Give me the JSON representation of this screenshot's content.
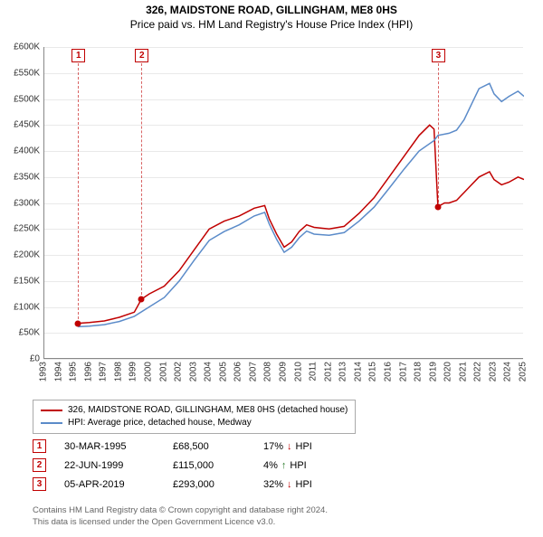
{
  "title": "326, MAIDSTONE ROAD, GILLINGHAM, ME8 0HS",
  "subtitle": "Price paid vs. HM Land Registry's House Price Index (HPI)",
  "chart": {
    "type": "line",
    "background_color": "#ffffff",
    "grid_color": "#e9e9e9",
    "axis_color": "#888888",
    "ylim": [
      0,
      600000
    ],
    "ytick_step": 50000,
    "ytick_labels": [
      "£0",
      "£50K",
      "£100K",
      "£150K",
      "£200K",
      "£250K",
      "£300K",
      "£350K",
      "£400K",
      "£450K",
      "£500K",
      "£550K",
      "£600K"
    ],
    "xlim": [
      1993,
      2025
    ],
    "xtick_step": 1,
    "xtick_labels": [
      "1993",
      "1994",
      "1995",
      "1996",
      "1997",
      "1998",
      "1999",
      "2000",
      "2001",
      "2002",
      "2003",
      "2004",
      "2005",
      "2006",
      "2007",
      "2008",
      "2009",
      "2010",
      "2011",
      "2012",
      "2013",
      "2014",
      "2015",
      "2016",
      "2017",
      "2018",
      "2019",
      "2020",
      "2021",
      "2022",
      "2023",
      "2024",
      "2025"
    ],
    "title_fontsize": 12,
    "label_fontsize": 10,
    "line_width": 1.5,
    "series": [
      {
        "name": "326, MAIDSTONE ROAD, GILLINGHAM, ME8 0HS (detached house)",
        "color": "#c00000",
        "points": [
          [
            1995.25,
            68500
          ],
          [
            1996,
            70000
          ],
          [
            1997,
            73000
          ],
          [
            1998,
            80000
          ],
          [
            1999,
            90000
          ],
          [
            1999.48,
            115000
          ],
          [
            2000,
            125000
          ],
          [
            2001,
            140000
          ],
          [
            2002,
            170000
          ],
          [
            2003,
            210000
          ],
          [
            2004,
            250000
          ],
          [
            2005,
            265000
          ],
          [
            2006,
            275000
          ],
          [
            2007,
            290000
          ],
          [
            2007.7,
            295000
          ],
          [
            2008,
            270000
          ],
          [
            2008.5,
            240000
          ],
          [
            2009,
            215000
          ],
          [
            2009.5,
            225000
          ],
          [
            2010,
            245000
          ],
          [
            2010.5,
            258000
          ],
          [
            2011,
            253000
          ],
          [
            2012,
            250000
          ],
          [
            2013,
            255000
          ],
          [
            2014,
            280000
          ],
          [
            2015,
            310000
          ],
          [
            2016,
            350000
          ],
          [
            2017,
            390000
          ],
          [
            2018,
            430000
          ],
          [
            2018.7,
            450000
          ],
          [
            2019,
            442000
          ],
          [
            2019.26,
            293000
          ],
          [
            2019.7,
            300000
          ],
          [
            2020,
            300000
          ],
          [
            2020.5,
            305000
          ],
          [
            2021,
            320000
          ],
          [
            2021.5,
            335000
          ],
          [
            2022,
            350000
          ],
          [
            2022.7,
            360000
          ],
          [
            2023,
            345000
          ],
          [
            2023.5,
            335000
          ],
          [
            2024,
            340000
          ],
          [
            2024.6,
            350000
          ],
          [
            2025,
            345000
          ]
        ]
      },
      {
        "name": "HPI: Average price, detached house, Medway",
        "color": "#5b8bc9",
        "points": [
          [
            1995.25,
            62000
          ],
          [
            1996,
            63000
          ],
          [
            1997,
            66000
          ],
          [
            1998,
            72000
          ],
          [
            1999,
            82000
          ],
          [
            2000,
            100000
          ],
          [
            2001,
            118000
          ],
          [
            2002,
            150000
          ],
          [
            2003,
            190000
          ],
          [
            2004,
            228000
          ],
          [
            2005,
            245000
          ],
          [
            2006,
            258000
          ],
          [
            2007,
            275000
          ],
          [
            2007.7,
            282000
          ],
          [
            2008,
            260000
          ],
          [
            2008.5,
            230000
          ],
          [
            2009,
            205000
          ],
          [
            2009.5,
            215000
          ],
          [
            2010,
            233000
          ],
          [
            2010.5,
            246000
          ],
          [
            2011,
            240000
          ],
          [
            2012,
            238000
          ],
          [
            2013,
            243000
          ],
          [
            2014,
            265000
          ],
          [
            2015,
            292000
          ],
          [
            2016,
            328000
          ],
          [
            2017,
            365000
          ],
          [
            2018,
            400000
          ],
          [
            2019,
            420000
          ],
          [
            2019.26,
            430000
          ],
          [
            2020,
            434000
          ],
          [
            2020.5,
            440000
          ],
          [
            2021,
            460000
          ],
          [
            2021.5,
            490000
          ],
          [
            2022,
            520000
          ],
          [
            2022.7,
            530000
          ],
          [
            2023,
            510000
          ],
          [
            2023.5,
            495000
          ],
          [
            2024,
            505000
          ],
          [
            2024.6,
            515000
          ],
          [
            2025,
            505000
          ]
        ]
      }
    ],
    "markers": [
      {
        "id": "1",
        "x": 1995.25,
        "y": 68500
      },
      {
        "id": "2",
        "x": 1999.48,
        "y": 115000
      },
      {
        "id": "3",
        "x": 2019.26,
        "y": 293000
      }
    ]
  },
  "legend": [
    {
      "color": "#c00000",
      "label": "326, MAIDSTONE ROAD, GILLINGHAM, ME8 0HS (detached house)"
    },
    {
      "color": "#5b8bc9",
      "label": "HPI: Average price, detached house, Medway"
    }
  ],
  "transactions": [
    {
      "id": "1",
      "date": "30-MAR-1995",
      "price": "£68,500",
      "diff_pct": "17%",
      "direction": "down",
      "suffix": "HPI"
    },
    {
      "id": "2",
      "date": "22-JUN-1999",
      "price": "£115,000",
      "diff_pct": "4%",
      "direction": "up",
      "suffix": "HPI"
    },
    {
      "id": "3",
      "date": "05-APR-2019",
      "price": "£293,000",
      "diff_pct": "32%",
      "direction": "down",
      "suffix": "HPI"
    }
  ],
  "footer": {
    "line1": "Contains HM Land Registry data © Crown copyright and database right 2024.",
    "line2": "This data is licensed under the Open Government Licence v3.0."
  },
  "colors": {
    "marker_border": "#c00000",
    "text": "#333333",
    "footer": "#666666"
  }
}
